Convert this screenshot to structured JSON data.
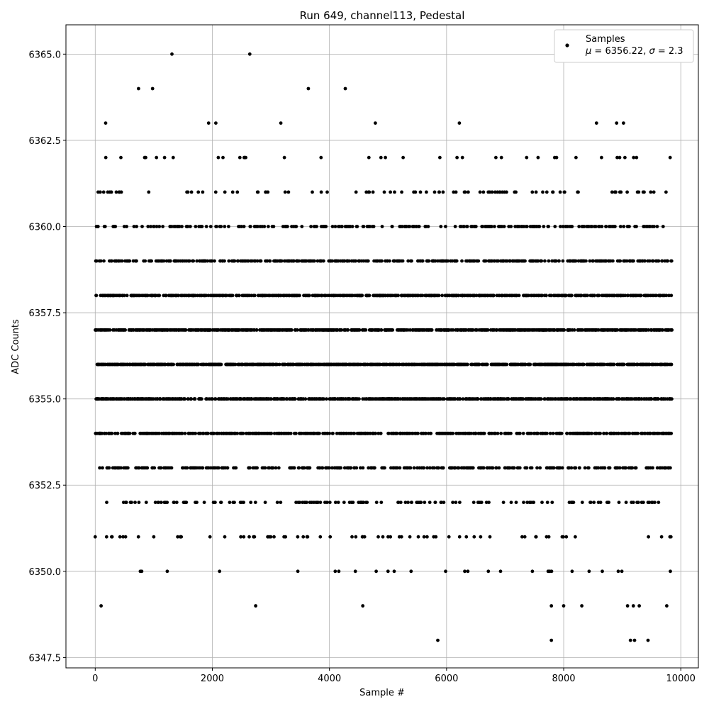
{
  "chart_data": {
    "type": "scatter",
    "title": "Run 649, channel113, Pedestal",
    "xlabel": "Sample #",
    "ylabel": "ADC Counts",
    "xlim": [
      -500,
      10300
    ],
    "ylim": [
      6347.2,
      6365.85
    ],
    "xticks": [
      0,
      2000,
      4000,
      6000,
      8000,
      10000
    ],
    "xtick_labels": [
      "0",
      "2000",
      "4000",
      "6000",
      "8000",
      "10000"
    ],
    "yticks": [
      6347.5,
      6350.0,
      6352.5,
      6355.0,
      6357.5,
      6360.0,
      6362.5,
      6365.0
    ],
    "ytick_labels": [
      "6347.5",
      "6350.0",
      "6352.5",
      "6355.0",
      "6357.5",
      "6360.0",
      "6362.5",
      "6365.0"
    ],
    "grid": true,
    "legend": {
      "placement": "top-right",
      "series_label": "Samples",
      "stats_label": "μ = 6356.22, σ = 2.3"
    },
    "marker_color": "#000000",
    "series": [
      {
        "name": "Samples",
        "points_description": "Sample index vs ADC value; values are integers 6348–6365 forming horizontal bands, densest at 6353–6359",
        "x_range": [
          0,
          9850
        ],
        "n_samples": 9850,
        "mean": 6356.22,
        "sigma": 2.3,
        "outliers": [
          {
            "x": 1310,
            "y": 6365
          },
          {
            "x": 2640,
            "y": 6365
          },
          {
            "x": 740,
            "y": 6364
          },
          {
            "x": 980,
            "y": 6364
          },
          {
            "x": 3640,
            "y": 6364
          },
          {
            "x": 4270,
            "y": 6364
          },
          {
            "x": 5850,
            "y": 6348
          },
          {
            "x": 7790,
            "y": 6348
          },
          {
            "x": 9140,
            "y": 6348
          },
          {
            "x": 9210,
            "y": 6348
          },
          {
            "x": 9440,
            "y": 6348
          },
          {
            "x": 100,
            "y": 6349
          },
          {
            "x": 2740,
            "y": 6349
          },
          {
            "x": 4570,
            "y": 6349
          },
          {
            "x": 7790,
            "y": 6349
          },
          {
            "x": 8000,
            "y": 6349
          },
          {
            "x": 8310,
            "y": 6349
          },
          {
            "x": 9090,
            "y": 6349
          },
          {
            "x": 9190,
            "y": 6349
          },
          {
            "x": 9290,
            "y": 6349
          },
          {
            "x": 9760,
            "y": 6349
          }
        ]
      }
    ]
  }
}
